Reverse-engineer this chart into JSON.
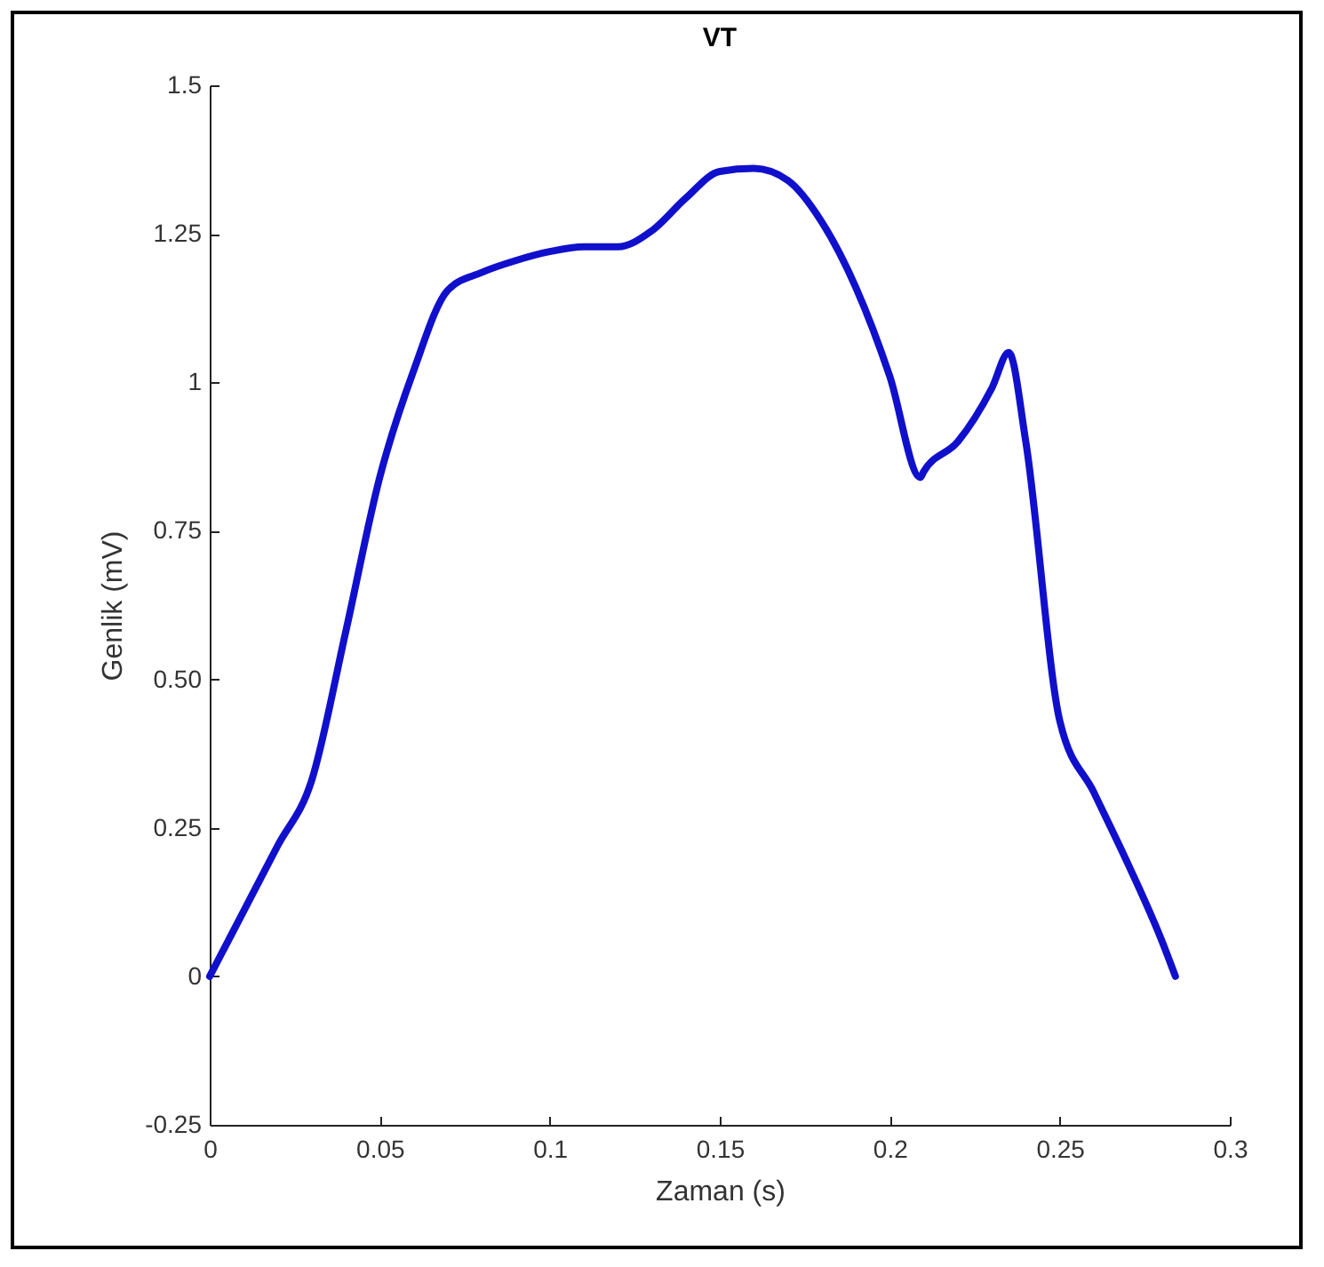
{
  "chart_data": {
    "type": "line",
    "title": "VT",
    "xlabel": "Zaman (s)",
    "ylabel": "Genlik (mV)",
    "x": [
      0,
      0.01,
      0.02,
      0.03,
      0.04,
      0.05,
      0.06,
      0.07,
      0.08,
      0.09,
      0.1,
      0.11,
      0.12,
      0.13,
      0.14,
      0.15,
      0.16,
      0.17,
      0.18,
      0.19,
      0.2,
      0.209,
      0.21,
      0.22,
      0.23,
      0.235,
      0.24,
      0.25,
      0.26,
      0.27,
      0.28,
      0.284
    ],
    "series": [
      {
        "color": "#1010cc",
        "values": [
          0,
          0.11,
          0.22,
          0.33,
          0.58,
          0.84,
          1.02,
          1.155,
          1.185,
          1.205,
          1.22,
          1.228,
          1.228,
          1.255,
          1.31,
          1.355,
          1.36,
          1.34,
          1.27,
          1.16,
          1.01,
          0.84,
          0.85,
          0.9,
          0.99,
          1.05,
          0.9,
          0.43,
          0.31,
          0.19,
          0.06,
          0
        ]
      }
    ],
    "xlim": [
      0,
      0.3
    ],
    "xticks": [
      0,
      0.05,
      0.1,
      0.15,
      0.2,
      0.25,
      0.3
    ],
    "ylim": [
      -0.25,
      1.5
    ],
    "yticks": [
      -0.25,
      0,
      0.25,
      {
        "value": 0.5,
        "label": "0.50"
      },
      0.75,
      1,
      1.25,
      1.5
    ],
    "grid": false,
    "marker": "none",
    "line_style": "solid"
  }
}
